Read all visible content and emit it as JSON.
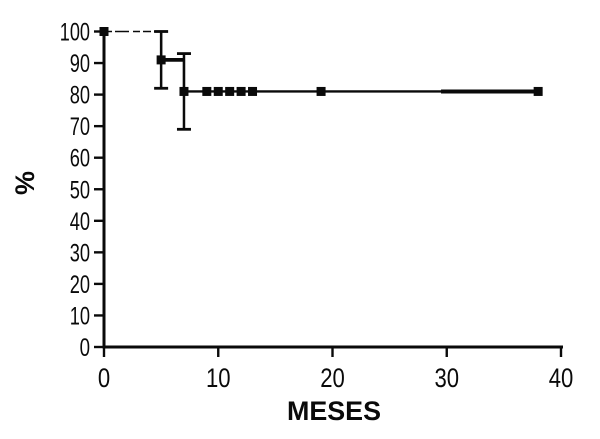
{
  "figure": {
    "background": "#ffffff",
    "ink_color": "#0a0a0a"
  },
  "chart_data": {
    "type": "line",
    "subtype": "kaplan_meier_step",
    "title": "",
    "xlabel": "MESES",
    "ylabel": "%",
    "xlim": [
      0,
      40
    ],
    "ylim": [
      0,
      100
    ],
    "x_ticks": [
      0,
      10,
      20,
      30,
      40
    ],
    "y_ticks": [
      100,
      90,
      80,
      70,
      60,
      50,
      40,
      30,
      20,
      10,
      0
    ],
    "grid": false,
    "legend": "none",
    "series": [
      {
        "marker": "square",
        "color": "#0a0a0a",
        "step_points": [
          [
            0,
            100
          ],
          [
            5,
            100
          ],
          [
            5,
            91
          ],
          [
            7,
            91
          ],
          [
            7,
            81
          ],
          [
            38,
            81
          ]
        ],
        "markers": [
          [
            0,
            100
          ],
          [
            5,
            91
          ],
          [
            7,
            81
          ],
          [
            9,
            81
          ],
          [
            10,
            81
          ],
          [
            11,
            81
          ],
          [
            12,
            81
          ],
          [
            13,
            81
          ],
          [
            19,
            81
          ],
          [
            38,
            81
          ]
        ],
        "error_bars": [
          {
            "x": 5,
            "center": 91,
            "low": 82,
            "high": 100
          },
          {
            "x": 7,
            "center": 81,
            "low": 69,
            "high": 93
          }
        ]
      }
    ]
  }
}
